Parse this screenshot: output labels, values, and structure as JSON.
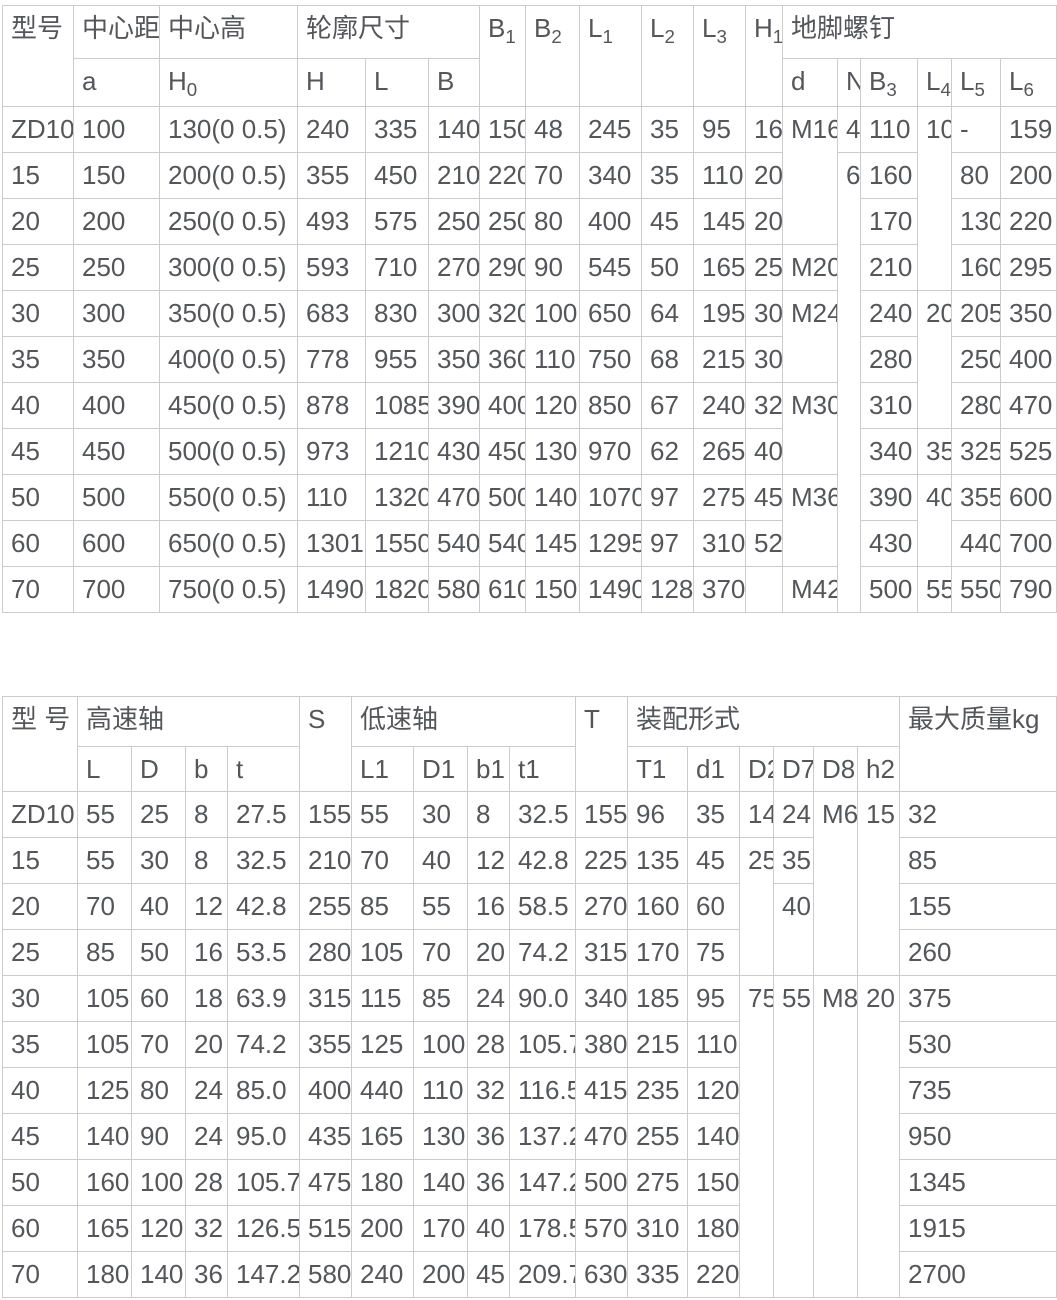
{
  "colors": {
    "text": "#54565a",
    "border": "#cccccc",
    "background": "#ffffff"
  },
  "table1": {
    "header": {
      "model": "型号",
      "center_distance": "中心距",
      "center_height": "中心高",
      "outline": "轮廓尺寸",
      "B1": {
        "b": "B",
        "s": "1"
      },
      "B2": {
        "b": "B",
        "s": "2"
      },
      "L1": {
        "b": "L",
        "s": "1"
      },
      "L2": {
        "b": "L",
        "s": "2"
      },
      "L3": {
        "b": "L",
        "s": "3"
      },
      "H1": {
        "b": "H",
        "s": "1"
      },
      "anchor_bolt": "地脚螺钉",
      "a": "a",
      "H0": {
        "b": "H",
        "s": "0"
      },
      "H": "H",
      "L": "L",
      "B": "B",
      "d": "d",
      "N": "N",
      "B3": {
        "b": "B",
        "s": "3"
      },
      "L4": {
        "b": "L",
        "s": "4"
      },
      "L5": {
        "b": "L",
        "s": "5"
      },
      "L6": {
        "b": "L",
        "s": "6"
      }
    },
    "rows": [
      [
        "ZD10",
        "100",
        "130(0 0.5)",
        "240",
        "335",
        "140",
        "150",
        "48",
        "245",
        "35",
        "95",
        "16",
        {
          "v": "M16",
          "rs": 3
        },
        "4",
        "110",
        {
          "v": "10",
          "rs": 4
        },
        "-",
        "159"
      ],
      [
        "15",
        "150",
        "200(0 0.5)",
        "355",
        "450",
        "210",
        "220",
        "70",
        "340",
        "35",
        "110",
        "20",
        {
          "v": "6",
          "rs": 10
        },
        "160",
        "80",
        "200"
      ],
      [
        "20",
        "200",
        "250(0 0.5)",
        "493",
        "575",
        "250",
        "250",
        "80",
        "400",
        "45",
        "145",
        "20",
        "170",
        "130",
        "220"
      ],
      [
        "25",
        "250",
        "300(0 0.5)",
        "593",
        "710",
        "270",
        "290",
        "90",
        "545",
        "50",
        "165",
        "25",
        "M20",
        "210",
        "160",
        "295"
      ],
      [
        "30",
        "300",
        "350(0 0.5)",
        "683",
        "830",
        "300",
        "320",
        "100",
        "650",
        "64",
        "195",
        "30",
        {
          "v": "M24",
          "rs": 2
        },
        "240",
        {
          "v": "20",
          "rs": 3
        },
        "205",
        "350"
      ],
      [
        "35",
        "350",
        "400(0 0.5)",
        "778",
        "955",
        "350",
        "360",
        "110",
        "750",
        "68",
        "215",
        "30",
        "280",
        "250",
        "400"
      ],
      [
        "40",
        "400",
        "450(0 0.5)",
        "878",
        "1085",
        "390",
        "400",
        "120",
        "850",
        "67",
        "240",
        "32",
        {
          "v": "M30",
          "rs": 2
        },
        "310",
        "280",
        "470"
      ],
      [
        "45",
        "450",
        "500(0 0.5)",
        "973",
        "1210",
        "430",
        "450",
        "130",
        "970",
        "62",
        "265",
        "40",
        "340",
        "35",
        "325",
        "525"
      ],
      [
        "50",
        "500",
        "550(0 0.5)",
        "110",
        "1320",
        "470",
        "500",
        "140",
        "1070",
        "97",
        "275",
        "45",
        {
          "v": "M36",
          "rs": 2
        },
        "390",
        {
          "v": "40",
          "rs": 2
        },
        "355",
        "600"
      ],
      [
        "60",
        "600",
        "650(0 0.5)",
        "1301",
        "1550",
        "540",
        "540",
        "145",
        "1295",
        "97",
        "310",
        "52",
        "430",
        "440",
        "700"
      ],
      [
        "70",
        "700",
        "750(0 0.5)",
        "1490",
        "1820",
        "580",
        "610",
        "150",
        "1490",
        "128",
        "370",
        "",
        "M42",
        "500",
        "55",
        "550",
        "790"
      ]
    ]
  },
  "table2": {
    "header": {
      "model": "型 号",
      "high_speed_shaft": "高速轴",
      "S": "S",
      "low_speed_shaft": "低速轴",
      "T": "T",
      "assembly_form": "装配形式",
      "max_mass": "最大质量kg",
      "L": "L",
      "D": "D",
      "b": "b",
      "t": "t",
      "L1": "L1",
      "D1": "D1",
      "b1": "b1",
      "t1": "t1",
      "T1": "T1",
      "d1": "d1",
      "D2": "D2",
      "D7": "D7",
      "D8": "D8",
      "h2": "h2"
    },
    "rows": [
      [
        "ZD10",
        "55",
        "25",
        "8",
        "27.5",
        "155",
        "55",
        "30",
        "8",
        "32.5",
        "155",
        "96",
        "35",
        "14",
        "24",
        {
          "v": "M6",
          "rs": 4
        },
        {
          "v": "15",
          "rs": 4
        },
        "32"
      ],
      [
        "15",
        "55",
        "30",
        "8",
        "32.5",
        "210",
        "70",
        "40",
        "12",
        "42.8",
        "225",
        "135",
        "45",
        {
          "v": "25",
          "rs": 3
        },
        "35",
        "85"
      ],
      [
        "20",
        "70",
        "40",
        "12",
        "42.8",
        "255",
        "85",
        "55",
        "16",
        "58.5",
        "270",
        "160",
        "60",
        {
          "v": "40",
          "rs": 2
        },
        "155"
      ],
      [
        "25",
        "85",
        "50",
        "16",
        "53.5",
        "280",
        "105",
        "70",
        "20",
        "74.2",
        "315",
        "170",
        "75",
        "260"
      ],
      [
        "30",
        "105",
        "60",
        "18",
        "63.9",
        "315",
        "115",
        "85",
        "24",
        "90.0",
        "340",
        "185",
        "95",
        {
          "v": "75",
          "rs": 7
        },
        {
          "v": "55",
          "rs": 7
        },
        {
          "v": "M8",
          "rs": 7
        },
        {
          "v": "20",
          "rs": 7
        },
        "375"
      ],
      [
        "35",
        "105",
        "70",
        "20",
        "74.2",
        "355",
        "125",
        "100",
        "28",
        "105.7",
        "380",
        "215",
        "110",
        "530"
      ],
      [
        "40",
        "125",
        "80",
        "24",
        "85.0",
        "400",
        "440",
        "110",
        "32",
        "116.5",
        "415",
        "235",
        "120",
        "735"
      ],
      [
        "45",
        "140",
        "90",
        "24",
        "95.0",
        "435",
        "165",
        "130",
        "36",
        "137.2",
        "470",
        "255",
        "140",
        "950"
      ],
      [
        "50",
        "160",
        "100",
        "28",
        "105.7",
        "475",
        "180",
        "140",
        "36",
        "147.2",
        "500",
        "275",
        "150",
        "1345"
      ],
      [
        "60",
        "165",
        "120",
        "32",
        "126.5",
        "515",
        "200",
        "170",
        "40",
        "178.5",
        "570",
        "310",
        "180",
        "1915"
      ],
      [
        "70",
        "180",
        "140",
        "36",
        "147.2",
        "580",
        "240",
        "200",
        "45",
        "209.7",
        "630",
        "335",
        "220",
        "2700"
      ]
    ]
  }
}
